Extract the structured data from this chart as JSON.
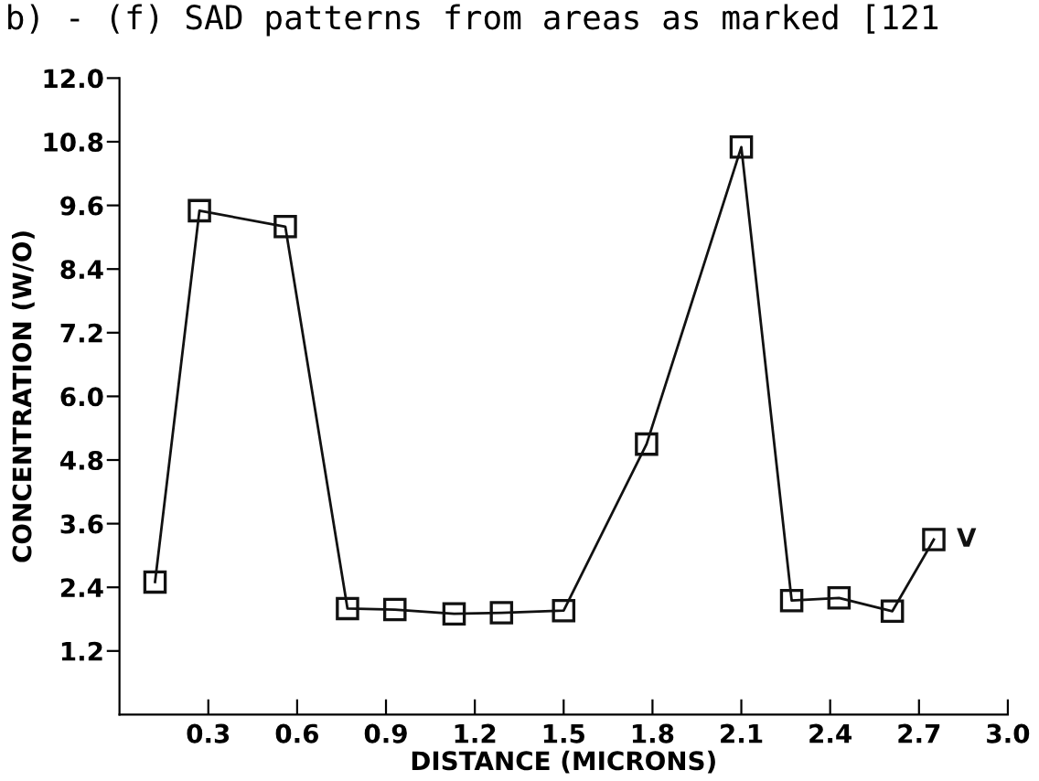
{
  "chart_data": {
    "type": "line",
    "xlabel": "DISTANCE (MICRONS)",
    "ylabel": "CONCENTRATION (W/O)",
    "annotations": [
      "b) - (f) SAD patterns from areas as marked [121"
    ],
    "series": [
      {
        "name": "V",
        "color": "#111111",
        "x": [
          0.12,
          0.27,
          0.56,
          0.77,
          0.93,
          1.13,
          1.29,
          1.5,
          1.78,
          2.1,
          2.27,
          2.43,
          2.61,
          2.75
        ],
        "values": [
          2.5,
          9.5,
          9.2,
          2.0,
          1.98,
          1.9,
          1.92,
          1.96,
          5.1,
          10.7,
          2.15,
          2.2,
          1.95,
          3.3
        ]
      }
    ],
    "xlim": [
      0,
      3.0
    ],
    "xticks": [
      0.3,
      0.6,
      0.9,
      1.2,
      1.5,
      1.8,
      2.1,
      2.4,
      2.7,
      {
        "value": 3,
        "label": "3.0"
      }
    ],
    "ylim": [
      0,
      12.0
    ],
    "yticks": [
      1.2,
      2.4,
      3.6,
      4.8,
      {
        "value": 6,
        "label": "6.0"
      },
      7.2,
      8.4,
      9.6,
      10.8,
      {
        "value": 12,
        "label": "12.0"
      }
    ],
    "grid": false,
    "legend": false,
    "marker": "square",
    "line_style": "solid"
  }
}
